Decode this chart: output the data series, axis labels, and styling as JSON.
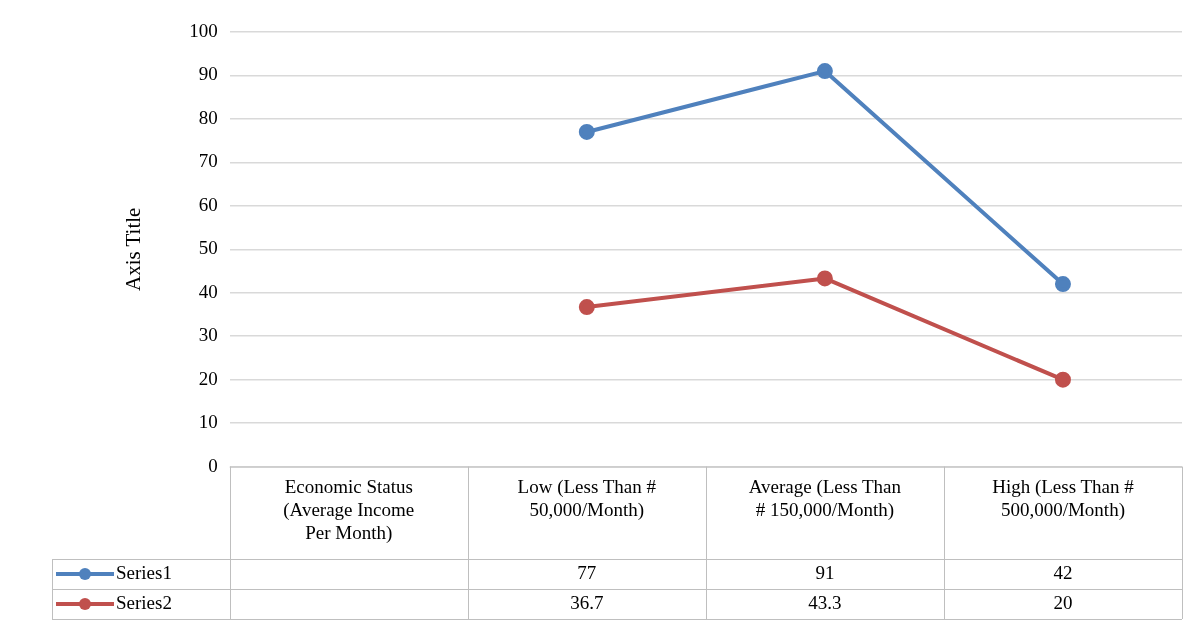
{
  "chart_data": {
    "type": "line",
    "ylabel": "Axis Title",
    "categories": [
      "Economic Status (Average Income Per Month)",
      "Low (Less Than # 50,000/Month)",
      "Average (Less Than # 150,000/Month)",
      "High (Less Than # 500,000/Month)"
    ],
    "series": [
      {
        "name": "Series1",
        "color": "#4f81bd",
        "values": [
          null,
          77,
          91,
          42
        ]
      },
      {
        "name": "Series2",
        "color": "#c0504d",
        "values": [
          null,
          36.7,
          43.3,
          20
        ]
      }
    ],
    "ylim": [
      0,
      100
    ],
    "yticks": [
      0,
      10,
      20,
      30,
      40,
      50,
      60,
      70,
      80,
      90,
      100
    ],
    "grid": "y",
    "legend": "bottom",
    "marker": "circle",
    "line_style": "solid",
    "data_labels": true
  }
}
